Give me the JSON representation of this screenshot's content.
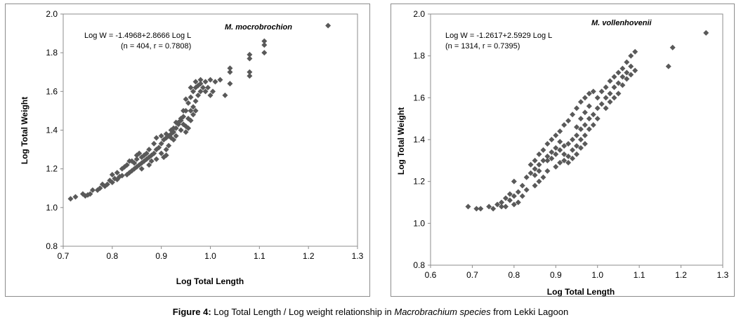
{
  "chart_data": [
    {
      "type": "scatter",
      "species": "M. mocrobrochion",
      "equation": "Log W = -1.4968+2.8666 Log L",
      "stats": "(n = 404, r = 0.7808)",
      "xlabel": "Log Total Length",
      "ylabel": "Log Total Weight",
      "xlim": [
        0.7,
        1.3
      ],
      "ylim": [
        0.8,
        2.0
      ],
      "xticks": [
        "0.7",
        "0.8",
        "0.9",
        "1.0",
        "1.1",
        "1.2",
        "1.3"
      ],
      "yticks": [
        "0.8",
        "1.0",
        "1.2",
        "1.4",
        "1.6",
        "1.8",
        "2.0"
      ],
      "marker_color": "#595959",
      "points": [
        [
          0.715,
          1.045
        ],
        [
          0.725,
          1.055
        ],
        [
          0.745,
          1.06
        ],
        [
          0.75,
          1.065
        ],
        [
          0.755,
          1.07
        ],
        [
          0.77,
          1.09
        ],
        [
          0.775,
          1.1
        ],
        [
          0.785,
          1.11
        ],
        [
          0.79,
          1.12
        ],
        [
          0.8,
          1.13
        ],
        [
          0.805,
          1.15
        ],
        [
          0.81,
          1.145
        ],
        [
          0.815,
          1.16
        ],
        [
          0.82,
          1.165
        ],
        [
          0.83,
          1.17
        ],
        [
          0.835,
          1.18
        ],
        [
          0.84,
          1.19
        ],
        [
          0.845,
          1.2
        ],
        [
          0.85,
          1.21
        ],
        [
          0.855,
          1.22
        ],
        [
          0.86,
          1.23
        ],
        [
          0.865,
          1.24
        ],
        [
          0.87,
          1.25
        ],
        [
          0.875,
          1.26
        ],
        [
          0.88,
          1.27
        ],
        [
          0.885,
          1.28
        ],
        [
          0.89,
          1.3
        ],
        [
          0.895,
          1.31
        ],
        [
          0.9,
          1.33
        ],
        [
          0.905,
          1.35
        ],
        [
          0.91,
          1.36
        ],
        [
          0.915,
          1.37
        ],
        [
          0.92,
          1.38
        ],
        [
          0.925,
          1.39
        ],
        [
          0.93,
          1.41
        ],
        [
          0.935,
          1.43
        ],
        [
          0.94,
          1.45
        ],
        [
          0.945,
          1.47
        ],
        [
          0.95,
          1.5
        ],
        [
          0.955,
          1.54
        ],
        [
          0.96,
          1.57
        ],
        [
          0.965,
          1.6
        ],
        [
          0.97,
          1.62
        ],
        [
          0.975,
          1.63
        ],
        [
          0.98,
          1.64
        ],
        [
          0.99,
          1.65
        ],
        [
          1.0,
          1.66
        ],
        [
          1.01,
          1.65
        ],
        [
          1.02,
          1.66
        ],
        [
          1.04,
          1.64
        ],
        [
          1.04,
          1.7
        ],
        [
          1.04,
          1.72
        ],
        [
          1.08,
          1.77
        ],
        [
          1.08,
          1.79
        ],
        [
          1.08,
          1.7
        ],
        [
          1.08,
          1.68
        ],
        [
          1.11,
          1.8
        ],
        [
          1.11,
          1.84
        ],
        [
          1.11,
          1.86
        ],
        [
          1.24,
          1.94
        ],
        [
          0.83,
          1.22
        ],
        [
          0.85,
          1.25
        ],
        [
          0.86,
          1.26
        ],
        [
          0.87,
          1.28
        ],
        [
          0.88,
          1.24
        ],
        [
          0.84,
          1.24
        ],
        [
          0.82,
          1.2
        ],
        [
          0.86,
          1.2
        ],
        [
          0.875,
          1.22
        ],
        [
          0.89,
          1.25
        ],
        [
          0.9,
          1.28
        ],
        [
          0.905,
          1.26
        ],
        [
          0.91,
          1.3
        ],
        [
          0.92,
          1.36
        ],
        [
          0.925,
          1.35
        ],
        [
          0.93,
          1.37
        ],
        [
          0.94,
          1.4
        ],
        [
          0.95,
          1.42
        ],
        [
          0.955,
          1.46
        ],
        [
          0.96,
          1.5
        ],
        [
          0.965,
          1.52
        ],
        [
          0.97,
          1.55
        ],
        [
          0.975,
          1.58
        ],
        [
          0.98,
          1.6
        ],
        [
          0.985,
          1.62
        ],
        [
          0.995,
          1.62
        ],
        [
          1.005,
          1.6
        ],
        [
          0.96,
          1.62
        ],
        [
          0.97,
          1.65
        ],
        [
          0.98,
          1.66
        ],
        [
          0.99,
          1.6
        ],
        [
          1.0,
          1.58
        ],
        [
          1.03,
          1.58
        ],
        [
          0.95,
          1.56
        ],
        [
          0.945,
          1.5
        ],
        [
          0.935,
          1.44
        ],
        [
          0.92,
          1.4
        ],
        [
          0.91,
          1.38
        ],
        [
          0.9,
          1.37
        ],
        [
          0.89,
          1.36
        ],
        [
          0.885,
          1.33
        ],
        [
          0.875,
          1.3
        ],
        [
          0.865,
          1.27
        ],
        [
          0.855,
          1.28
        ],
        [
          0.85,
          1.27
        ],
        [
          0.845,
          1.23
        ],
        [
          0.835,
          1.24
        ],
        [
          0.825,
          1.21
        ],
        [
          0.81,
          1.18
        ],
        [
          0.8,
          1.17
        ],
        [
          0.795,
          1.14
        ],
        [
          0.78,
          1.12
        ],
        [
          0.76,
          1.09
        ],
        [
          0.74,
          1.07
        ],
        [
          0.91,
          1.27
        ],
        [
          0.915,
          1.32
        ],
        [
          0.925,
          1.41
        ],
        [
          0.93,
          1.44
        ],
        [
          0.94,
          1.46
        ],
        [
          0.945,
          1.43
        ],
        [
          0.95,
          1.39
        ],
        [
          0.955,
          1.41
        ],
        [
          0.96,
          1.45
        ],
        [
          0.965,
          1.48
        ],
        [
          0.97,
          1.5
        ]
      ]
    },
    {
      "type": "scatter",
      "species": "M. vollenhovenii",
      "equation": "Log W = -1.2617+2.5929 Log L",
      "stats": "(n = 1314, r = 0.7395)",
      "xlabel": "Log Total Length",
      "ylabel": "Log Total Weight",
      "xlim": [
        0.6,
        1.3
      ],
      "ylim": [
        0.8,
        2.0
      ],
      "xticks": [
        "0.6",
        "0.7",
        "0.8",
        "0.9",
        "1.0",
        "1.1",
        "1.2",
        "1.3"
      ],
      "yticks": [
        "0.8",
        "1.0",
        "1.2",
        "1.4",
        "1.6",
        "1.8",
        "2.0"
      ],
      "marker_color": "#595959",
      "points": [
        [
          0.69,
          1.08
        ],
        [
          0.71,
          1.07
        ],
        [
          0.72,
          1.07
        ],
        [
          0.74,
          1.08
        ],
        [
          0.75,
          1.07
        ],
        [
          0.76,
          1.09
        ],
        [
          0.77,
          1.1
        ],
        [
          0.78,
          1.08
        ],
        [
          0.79,
          1.11
        ],
        [
          0.8,
          1.13
        ],
        [
          0.81,
          1.15
        ],
        [
          0.8,
          1.2
        ],
        [
          0.82,
          1.18
        ],
        [
          0.83,
          1.22
        ],
        [
          0.84,
          1.24
        ],
        [
          0.85,
          1.26
        ],
        [
          0.86,
          1.28
        ],
        [
          0.87,
          1.3
        ],
        [
          0.88,
          1.32
        ],
        [
          0.89,
          1.34
        ],
        [
          0.9,
          1.33
        ],
        [
          0.91,
          1.35
        ],
        [
          0.92,
          1.37
        ],
        [
          0.93,
          1.38
        ],
        [
          0.94,
          1.4
        ],
        [
          0.95,
          1.42
        ],
        [
          0.96,
          1.45
        ],
        [
          0.97,
          1.47
        ],
        [
          0.98,
          1.5
        ],
        [
          0.99,
          1.52
        ],
        [
          1.0,
          1.55
        ],
        [
          1.01,
          1.57
        ],
        [
          1.02,
          1.6
        ],
        [
          1.03,
          1.62
        ],
        [
          1.04,
          1.65
        ],
        [
          1.05,
          1.67
        ],
        [
          1.06,
          1.7
        ],
        [
          1.07,
          1.72
        ],
        [
          1.08,
          1.75
        ],
        [
          1.08,
          1.8
        ],
        [
          1.09,
          1.82
        ],
        [
          1.17,
          1.75
        ],
        [
          1.18,
          1.84
        ],
        [
          1.26,
          1.91
        ],
        [
          0.84,
          1.28
        ],
        [
          0.85,
          1.3
        ],
        [
          0.86,
          1.33
        ],
        [
          0.87,
          1.35
        ],
        [
          0.88,
          1.38
        ],
        [
          0.89,
          1.4
        ],
        [
          0.9,
          1.42
        ],
        [
          0.91,
          1.44
        ],
        [
          0.92,
          1.47
        ],
        [
          0.93,
          1.49
        ],
        [
          0.94,
          1.52
        ],
        [
          0.95,
          1.55
        ],
        [
          0.96,
          1.58
        ],
        [
          0.97,
          1.6
        ],
        [
          0.98,
          1.62
        ],
        [
          0.99,
          1.63
        ],
        [
          1.0,
          1.6
        ],
        [
          1.01,
          1.63
        ],
        [
          1.02,
          1.65
        ],
        [
          1.03,
          1.68
        ],
        [
          1.04,
          1.7
        ],
        [
          1.05,
          1.72
        ],
        [
          1.06,
          1.74
        ],
        [
          1.07,
          1.77
        ],
        [
          1.02,
          1.55
        ],
        [
          1.03,
          1.58
        ],
        [
          1.04,
          1.6
        ],
        [
          0.9,
          1.27
        ],
        [
          0.91,
          1.29
        ],
        [
          0.92,
          1.3
        ],
        [
          0.93,
          1.32
        ],
        [
          0.94,
          1.35
        ],
        [
          0.95,
          1.37
        ],
        [
          0.96,
          1.4
        ],
        [
          0.97,
          1.42
        ],
        [
          0.98,
          1.45
        ],
        [
          0.99,
          1.47
        ],
        [
          1.0,
          1.5
        ],
        [
          0.88,
          1.25
        ],
        [
          0.87,
          1.22
        ],
        [
          0.86,
          1.2
        ],
        [
          0.85,
          1.18
        ],
        [
          0.83,
          1.16
        ],
        [
          0.82,
          1.13
        ],
        [
          0.81,
          1.1
        ],
        [
          0.79,
          1.14
        ],
        [
          0.8,
          1.09
        ],
        [
          0.78,
          1.12
        ],
        [
          0.77,
          1.08
        ],
        [
          0.95,
          1.33
        ],
        [
          0.96,
          1.36
        ],
        [
          0.94,
          1.31
        ],
        [
          0.93,
          1.29
        ],
        [
          0.92,
          1.33
        ],
        [
          0.97,
          1.38
        ],
        [
          1.05,
          1.62
        ],
        [
          1.06,
          1.66
        ],
        [
          1.07,
          1.69
        ],
        [
          1.08,
          1.71
        ],
        [
          1.09,
          1.73
        ],
        [
          0.95,
          1.46
        ],
        [
          0.96,
          1.5
        ],
        [
          0.97,
          1.53
        ],
        [
          0.98,
          1.56
        ],
        [
          0.91,
          1.39
        ],
        [
          0.9,
          1.36
        ],
        [
          0.89,
          1.31
        ],
        [
          0.88,
          1.3
        ],
        [
          0.86,
          1.25
        ],
        [
          0.85,
          1.23
        ]
      ]
    }
  ],
  "caption": {
    "label": "Figure 4:",
    "text_before": " Log Total Length / Log weight relationship in ",
    "italic": "Macrobrachium species",
    "text_after": " from Lekki Lagoon"
  }
}
